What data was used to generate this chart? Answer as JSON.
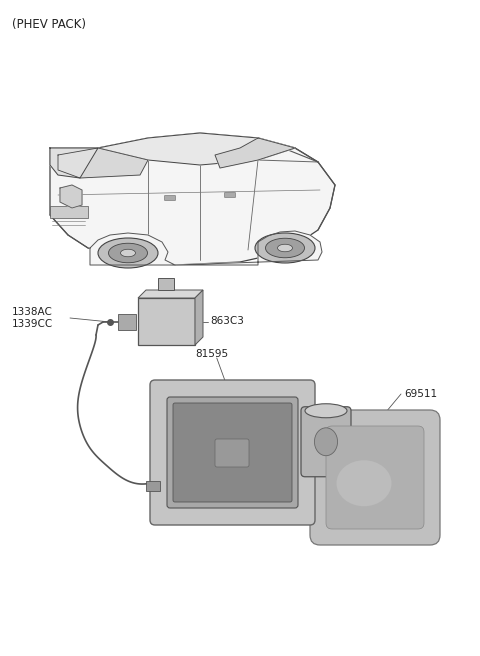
{
  "title": "(PHEV PACK)",
  "background_color": "#ffffff",
  "fig_width": 4.8,
  "fig_height": 6.56,
  "dpi": 100,
  "line_color": "#333333",
  "text_color": "#222222",
  "label_1338": "1338AC\n1339CC",
  "label_863": "863C3",
  "label_81595": "81595",
  "label_69511": "69511",
  "car_fill": "#ffffff",
  "car_edge": "#444444",
  "part_fill_light": "#d0d0d0",
  "part_fill_mid": "#b8b8b8",
  "part_fill_dark": "#909090",
  "part_edge": "#555555"
}
